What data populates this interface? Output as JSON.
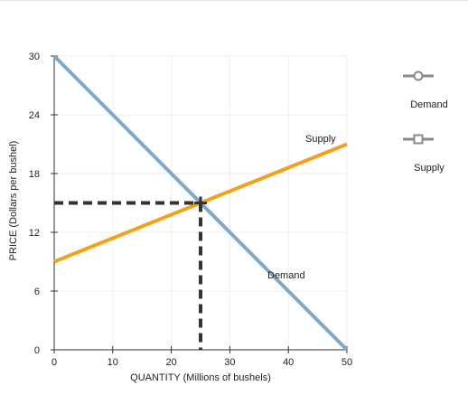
{
  "chart_data": {
    "type": "line",
    "xlabel": "QUANTITY (Millions of bushels)",
    "ylabel": "PRICE (Dollars per bushel)",
    "xlim": [
      0,
      50
    ],
    "ylim": [
      0,
      30
    ],
    "x_ticks": [
      "0",
      "10",
      "20",
      "30",
      "40",
      "50"
    ],
    "y_ticks": [
      "0",
      "6",
      "12",
      "18",
      "24",
      "30"
    ],
    "grid": true,
    "series": [
      {
        "name": "Demand",
        "label": "Demand",
        "color": "#7fa8c9",
        "points": [
          [
            0,
            30
          ],
          [
            50,
            0
          ]
        ]
      },
      {
        "name": "Supply",
        "label": "Supply",
        "color": "#f5a01a",
        "points": [
          [
            0,
            9
          ],
          [
            50,
            21
          ]
        ]
      }
    ],
    "equilibrium": {
      "x": 25,
      "y": 15,
      "color": "#333333"
    }
  },
  "legend": {
    "items": [
      {
        "name": "Demand",
        "marker": "circle",
        "color": "#8a8a8a"
      },
      {
        "name": "Supply",
        "marker": "square",
        "color": "#8a8a8a"
      }
    ]
  }
}
